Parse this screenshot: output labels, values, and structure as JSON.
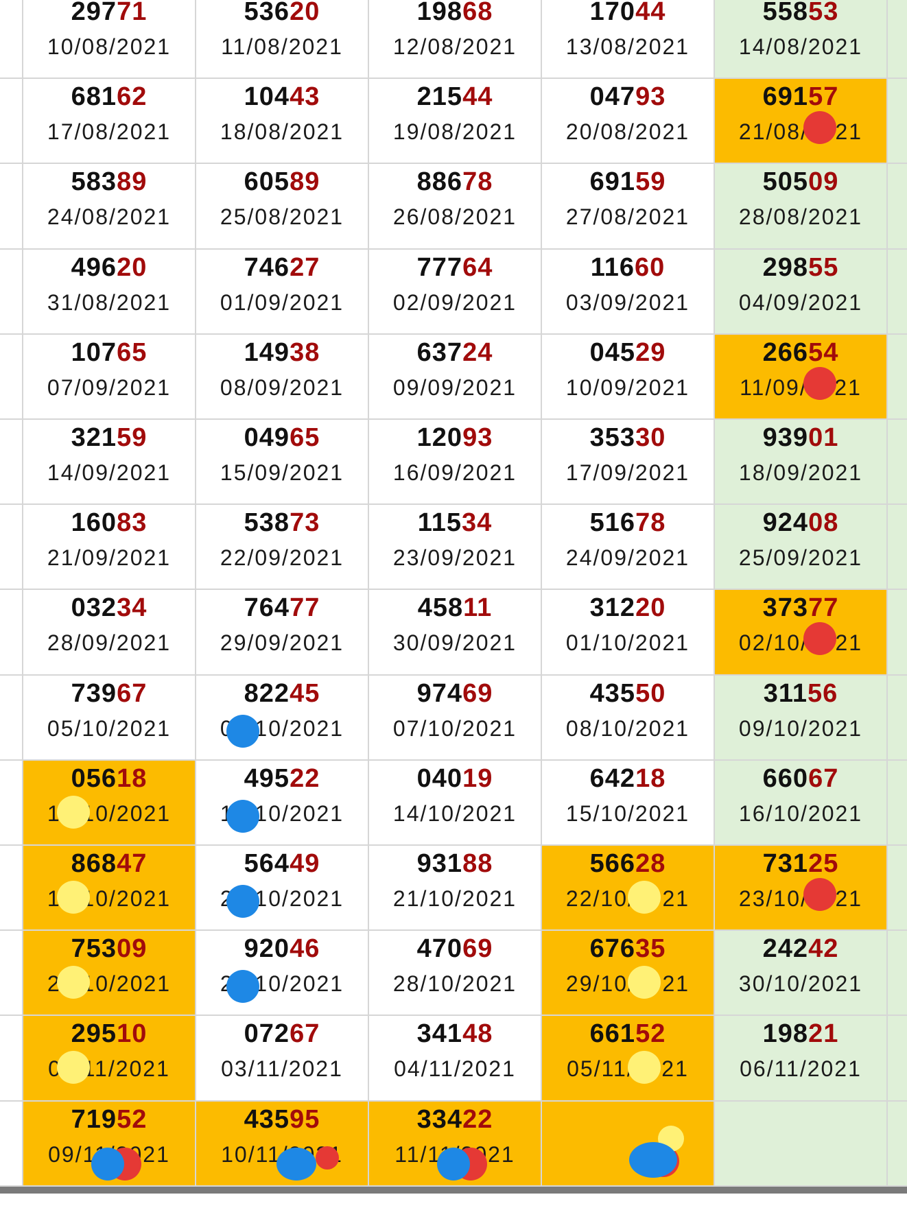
{
  "colors": {
    "highlight": "#fcbb00",
    "light_green": "#dff0d8",
    "number_prefix": "#111111",
    "number_suffix": "#a10b0b",
    "grid_line": "#d6d6d6",
    "dot_red": "#e53935",
    "dot_blue": "#1e88e5",
    "dot_yellow": "#fff176"
  },
  "rows": [
    [
      {
        "pre": "297",
        "suf": "71",
        "date": "10/08/2021",
        "bg": "white",
        "dots": []
      },
      {
        "pre": "536",
        "suf": "20",
        "date": "11/08/2021",
        "bg": "white",
        "dots": []
      },
      {
        "pre": "198",
        "suf": "68",
        "date": "12/08/2021",
        "bg": "white",
        "dots": []
      },
      {
        "pre": "170",
        "suf": "44",
        "date": "13/08/2021",
        "bg": "white",
        "dots": []
      },
      {
        "pre": "558",
        "suf": "53",
        "date": "14/08/2021",
        "bg": "green",
        "dots": []
      }
    ],
    [
      {
        "pre": "681",
        "suf": "62",
        "date": "17/08/2021",
        "bg": "white",
        "dots": []
      },
      {
        "pre": "104",
        "suf": "43",
        "date": "18/08/2021",
        "bg": "white",
        "dots": []
      },
      {
        "pre": "215",
        "suf": "44",
        "date": "19/08/2021",
        "bg": "white",
        "dots": []
      },
      {
        "pre": "047",
        "suf": "93",
        "date": "20/08/2021",
        "bg": "white",
        "dots": []
      },
      {
        "pre": "691",
        "suf": "57",
        "date": "21/08/2021",
        "bg": "orange",
        "dots": [
          "red"
        ]
      }
    ],
    [
      {
        "pre": "583",
        "suf": "89",
        "date": "24/08/2021",
        "bg": "white",
        "dots": []
      },
      {
        "pre": "605",
        "suf": "89",
        "date": "25/08/2021",
        "bg": "white",
        "dots": []
      },
      {
        "pre": "886",
        "suf": "78",
        "date": "26/08/2021",
        "bg": "white",
        "dots": []
      },
      {
        "pre": "691",
        "suf": "59",
        "date": "27/08/2021",
        "bg": "white",
        "dots": []
      },
      {
        "pre": "505",
        "suf": "09",
        "date": "28/08/2021",
        "bg": "green",
        "dots": []
      }
    ],
    [
      {
        "pre": "496",
        "suf": "20",
        "date": "31/08/2021",
        "bg": "white",
        "dots": []
      },
      {
        "pre": "746",
        "suf": "27",
        "date": "01/09/2021",
        "bg": "white",
        "dots": []
      },
      {
        "pre": "777",
        "suf": "64",
        "date": "02/09/2021",
        "bg": "white",
        "dots": []
      },
      {
        "pre": "116",
        "suf": "60",
        "date": "03/09/2021",
        "bg": "white",
        "dots": []
      },
      {
        "pre": "298",
        "suf": "55",
        "date": "04/09/2021",
        "bg": "green",
        "dots": []
      }
    ],
    [
      {
        "pre": "107",
        "suf": "65",
        "date": "07/09/2021",
        "bg": "white",
        "dots": []
      },
      {
        "pre": "149",
        "suf": "38",
        "date": "08/09/2021",
        "bg": "white",
        "dots": []
      },
      {
        "pre": "637",
        "suf": "24",
        "date": "09/09/2021",
        "bg": "white",
        "dots": []
      },
      {
        "pre": "045",
        "suf": "29",
        "date": "10/09/2021",
        "bg": "white",
        "dots": []
      },
      {
        "pre": "266",
        "suf": "54",
        "date": "11/09/2021",
        "bg": "orange",
        "dots": [
          "red"
        ]
      }
    ],
    [
      {
        "pre": "321",
        "suf": "59",
        "date": "14/09/2021",
        "bg": "white",
        "dots": []
      },
      {
        "pre": "049",
        "suf": "65",
        "date": "15/09/2021",
        "bg": "white",
        "dots": []
      },
      {
        "pre": "120",
        "suf": "93",
        "date": "16/09/2021",
        "bg": "white",
        "dots": []
      },
      {
        "pre": "353",
        "suf": "30",
        "date": "17/09/2021",
        "bg": "white",
        "dots": []
      },
      {
        "pre": "939",
        "suf": "01",
        "date": "18/09/2021",
        "bg": "green",
        "dots": []
      }
    ],
    [
      {
        "pre": "160",
        "suf": "83",
        "date": "21/09/2021",
        "bg": "white",
        "dots": []
      },
      {
        "pre": "538",
        "suf": "73",
        "date": "22/09/2021",
        "bg": "white",
        "dots": []
      },
      {
        "pre": "115",
        "suf": "34",
        "date": "23/09/2021",
        "bg": "white",
        "dots": []
      },
      {
        "pre": "516",
        "suf": "78",
        "date": "24/09/2021",
        "bg": "white",
        "dots": []
      },
      {
        "pre": "924",
        "suf": "08",
        "date": "25/09/2021",
        "bg": "green",
        "dots": []
      }
    ],
    [
      {
        "pre": "032",
        "suf": "34",
        "date": "28/09/2021",
        "bg": "white",
        "dots": []
      },
      {
        "pre": "764",
        "suf": "77",
        "date": "29/09/2021",
        "bg": "white",
        "dots": []
      },
      {
        "pre": "458",
        "suf": "11",
        "date": "30/09/2021",
        "bg": "white",
        "dots": []
      },
      {
        "pre": "312",
        "suf": "20",
        "date": "01/10/2021",
        "bg": "white",
        "dots": []
      },
      {
        "pre": "373",
        "suf": "77",
        "date": "02/10/2021",
        "bg": "orange",
        "dots": [
          "red"
        ]
      }
    ],
    [
      {
        "pre": "739",
        "suf": "67",
        "date": "05/10/2021",
        "bg": "white",
        "dots": []
      },
      {
        "pre": "822",
        "suf": "45",
        "date": "06/10/2021",
        "bg": "white",
        "dots": [
          "blue"
        ]
      },
      {
        "pre": "974",
        "suf": "69",
        "date": "07/10/2021",
        "bg": "white",
        "dots": []
      },
      {
        "pre": "435",
        "suf": "50",
        "date": "08/10/2021",
        "bg": "white",
        "dots": []
      },
      {
        "pre": "311",
        "suf": "56",
        "date": "09/10/2021",
        "bg": "green",
        "dots": []
      }
    ],
    [
      {
        "pre": "056",
        "suf": "18",
        "date": "12/10/2021",
        "bg": "orange",
        "dots": [
          "yellow"
        ]
      },
      {
        "pre": "495",
        "suf": "22",
        "date": "13/10/2021",
        "bg": "white",
        "dots": [
          "blue"
        ]
      },
      {
        "pre": "040",
        "suf": "19",
        "date": "14/10/2021",
        "bg": "white",
        "dots": []
      },
      {
        "pre": "642",
        "suf": "18",
        "date": "15/10/2021",
        "bg": "white",
        "dots": []
      },
      {
        "pre": "660",
        "suf": "67",
        "date": "16/10/2021",
        "bg": "green",
        "dots": []
      }
    ],
    [
      {
        "pre": "868",
        "suf": "47",
        "date": "19/10/2021",
        "bg": "orange",
        "dots": [
          "yellow"
        ]
      },
      {
        "pre": "564",
        "suf": "49",
        "date": "20/10/2021",
        "bg": "white",
        "dots": [
          "blue"
        ]
      },
      {
        "pre": "931",
        "suf": "88",
        "date": "21/10/2021",
        "bg": "white",
        "dots": []
      },
      {
        "pre": "566",
        "suf": "28",
        "date": "22/10/2021",
        "bg": "orange",
        "dots": [
          "yellow"
        ]
      },
      {
        "pre": "731",
        "suf": "25",
        "date": "23/10/2021",
        "bg": "orange",
        "dots": [
          "red"
        ]
      }
    ],
    [
      {
        "pre": "753",
        "suf": "09",
        "date": "26/10/2021",
        "bg": "orange",
        "dots": [
          "yellow"
        ]
      },
      {
        "pre": "920",
        "suf": "46",
        "date": "27/10/2021",
        "bg": "white",
        "dots": [
          "blue"
        ]
      },
      {
        "pre": "470",
        "suf": "69",
        "date": "28/10/2021",
        "bg": "white",
        "dots": []
      },
      {
        "pre": "676",
        "suf": "35",
        "date": "29/10/2021",
        "bg": "orange",
        "dots": [
          "yellow"
        ]
      },
      {
        "pre": "242",
        "suf": "42",
        "date": "30/10/2021",
        "bg": "green",
        "dots": []
      }
    ],
    [
      {
        "pre": "295",
        "suf": "10",
        "date": "02/11/2021",
        "bg": "orange",
        "dots": [
          "yellow"
        ]
      },
      {
        "pre": "072",
        "suf": "67",
        "date": "03/11/2021",
        "bg": "white",
        "dots": []
      },
      {
        "pre": "341",
        "suf": "48",
        "date": "04/11/2021",
        "bg": "white",
        "dots": []
      },
      {
        "pre": "661",
        "suf": "52",
        "date": "05/11/2021",
        "bg": "orange",
        "dots": [
          "yellow"
        ]
      },
      {
        "pre": "198",
        "suf": "21",
        "date": "06/11/2021",
        "bg": "green",
        "dots": []
      }
    ],
    [
      {
        "pre": "719",
        "suf": "52",
        "date": "09/11/2021",
        "bg": "orange",
        "dots": [
          "blue",
          "red"
        ]
      },
      {
        "pre": "435",
        "suf": "95",
        "date": "10/11/2021",
        "bg": "orange",
        "dots": [
          "blue",
          "red"
        ]
      },
      {
        "pre": "334",
        "suf": "22",
        "date": "11/11/2021",
        "bg": "orange",
        "dots": [
          "blue",
          "red"
        ]
      },
      {
        "pre": "",
        "suf": "",
        "date": "",
        "bg": "orange",
        "dots": [
          "blue",
          "red",
          "yellow"
        ]
      },
      {
        "pre": "",
        "suf": "",
        "date": "",
        "bg": "green",
        "dots": []
      }
    ]
  ]
}
